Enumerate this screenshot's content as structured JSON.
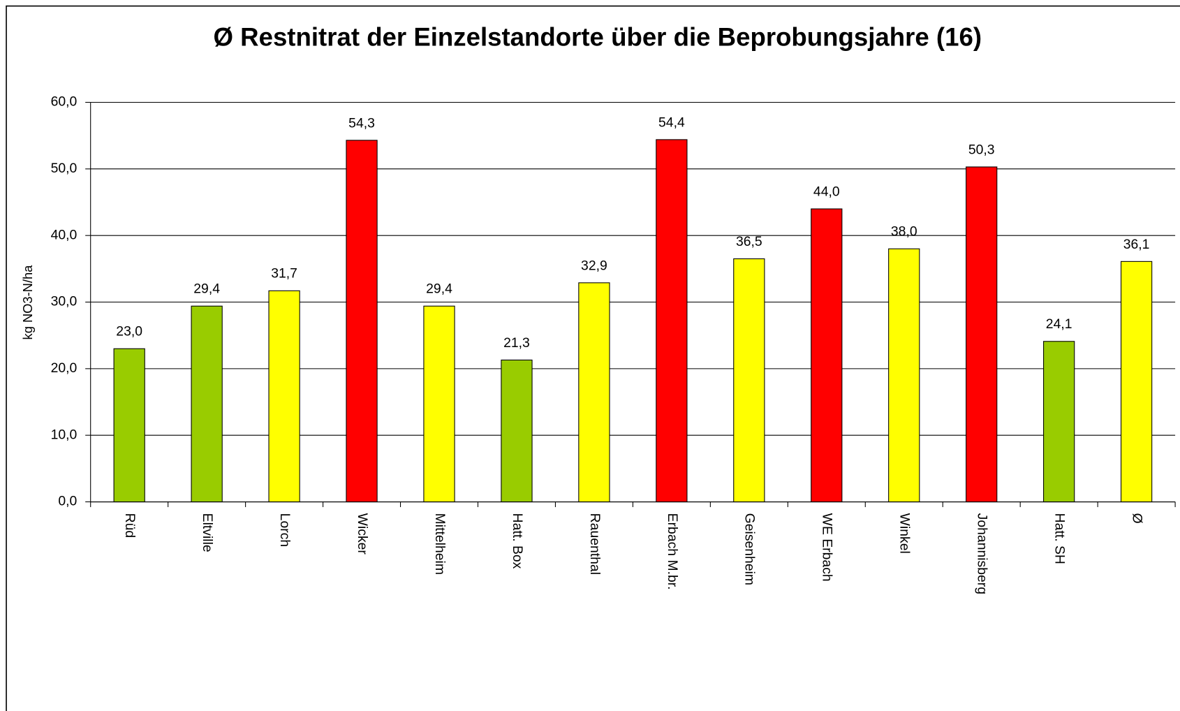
{
  "chart_data": {
    "type": "bar",
    "title": "Ø Restnitrat der Einzelstandorte über die Beprobungsjahre (16)",
    "y_label": "kg NO3-N/ha",
    "categories": [
      "Rüd",
      "Eltville",
      "Lorch",
      "Wicker",
      "Mittelheim",
      "Hatt. Box",
      "Rauenthal",
      "Erbach M.br.",
      "Geisenheim",
      "WE Erbach",
      "Winkel",
      "Johannisberg",
      "Hatt. SH",
      "Ø"
    ],
    "values": [
      23.0,
      29.4,
      31.7,
      54.3,
      29.4,
      21.3,
      32.9,
      54.4,
      36.5,
      44.0,
      38.0,
      50.3,
      24.1,
      36.1
    ],
    "value_labels": [
      "23,0",
      "29,4",
      "31,7",
      "54,3",
      "29,4",
      "21,3",
      "32,9",
      "54,4",
      "36,5",
      "44,0",
      "38,0",
      "50,3",
      "24,1",
      "36,1"
    ],
    "colors": [
      "#99cc00",
      "#99cc00",
      "#ffff00",
      "#ff0000",
      "#ffff00",
      "#99cc00",
      "#ffff00",
      "#ff0000",
      "#ffff00",
      "#ff0000",
      "#ffff00",
      "#ff0000",
      "#99cc00",
      "#ffff00"
    ],
    "ylim": [
      0,
      60
    ],
    "yticks": [
      {
        "value": 0,
        "label": "0,0"
      },
      {
        "value": 10,
        "label": "10,0"
      },
      {
        "value": 20,
        "label": "20,0"
      },
      {
        "value": 30,
        "label": "30,0"
      },
      {
        "value": 40,
        "label": "40,0"
      },
      {
        "value": 50,
        "label": "50,0"
      },
      {
        "value": 60,
        "label": "60,0"
      }
    ],
    "grid": true
  }
}
